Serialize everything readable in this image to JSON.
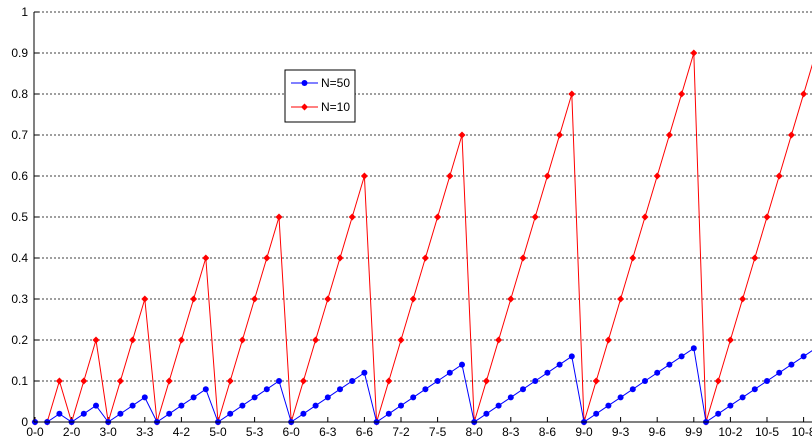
{
  "chart_data": {
    "type": "line",
    "ylim": [
      0,
      1
    ],
    "y_ticks": [
      "0",
      "0.1",
      "0.2",
      "0.3",
      "0.4",
      "0.5",
      "0.6",
      "0.7",
      "0.8",
      "0.9",
      "1"
    ],
    "x_tick_labels": [
      "0-0",
      "2-0",
      "3-0",
      "3-3",
      "4-2",
      "5-0",
      "5-3",
      "6-0",
      "6-3",
      "6-6",
      "7-2",
      "7-5",
      "8-0",
      "8-3",
      "8-6",
      "9-0",
      "9-3",
      "9-6",
      "9-9",
      "10-2",
      "10-5",
      "10-8"
    ],
    "grid": "horizontal dashed",
    "legend": {
      "placement": "upper-middle",
      "entries": [
        "N=50",
        "N=10"
      ]
    },
    "series": [
      {
        "name": "N=50",
        "color": "#0000ff",
        "marker": "circle",
        "values": [
          0,
          0,
          0.02,
          0,
          0.02,
          0.04,
          0,
          0.02,
          0.04,
          0.06,
          0,
          0.02,
          0.04,
          0.06,
          0.08,
          0,
          0.02,
          0.04,
          0.06,
          0.08,
          0.1,
          0,
          0.02,
          0.04,
          0.06,
          0.08,
          0.1,
          0.12,
          0,
          0.02,
          0.04,
          0.06,
          0.08,
          0.1,
          0.12,
          0.14,
          0,
          0.02,
          0.04,
          0.06,
          0.08,
          0.1,
          0.12,
          0.14,
          0.16,
          0,
          0.02,
          0.04,
          0.06,
          0.08,
          0.1,
          0.12,
          0.14,
          0.16,
          0.18,
          0,
          0.02,
          0.04,
          0.06,
          0.08,
          0.1,
          0.12,
          0.14,
          0.16,
          0.18
        ]
      },
      {
        "name": "N=10",
        "color": "#ff0000",
        "marker": "diamond",
        "values": [
          0,
          0,
          0.1,
          0,
          0.1,
          0.2,
          0,
          0.1,
          0.2,
          0.3,
          0,
          0.1,
          0.2,
          0.3,
          0.4,
          0,
          0.1,
          0.2,
          0.3,
          0.4,
          0.5,
          0,
          0.1,
          0.2,
          0.3,
          0.4,
          0.5,
          0.6,
          0,
          0.1,
          0.2,
          0.3,
          0.4,
          0.5,
          0.6,
          0.7,
          0,
          0.1,
          0.2,
          0.3,
          0.4,
          0.5,
          0.6,
          0.7,
          0.8,
          0,
          0.1,
          0.2,
          0.3,
          0.4,
          0.5,
          0.6,
          0.7,
          0.8,
          0.9,
          0,
          0.1,
          0.2,
          0.3,
          0.4,
          0.5,
          0.6,
          0.7,
          0.8,
          0.9
        ]
      }
    ]
  }
}
